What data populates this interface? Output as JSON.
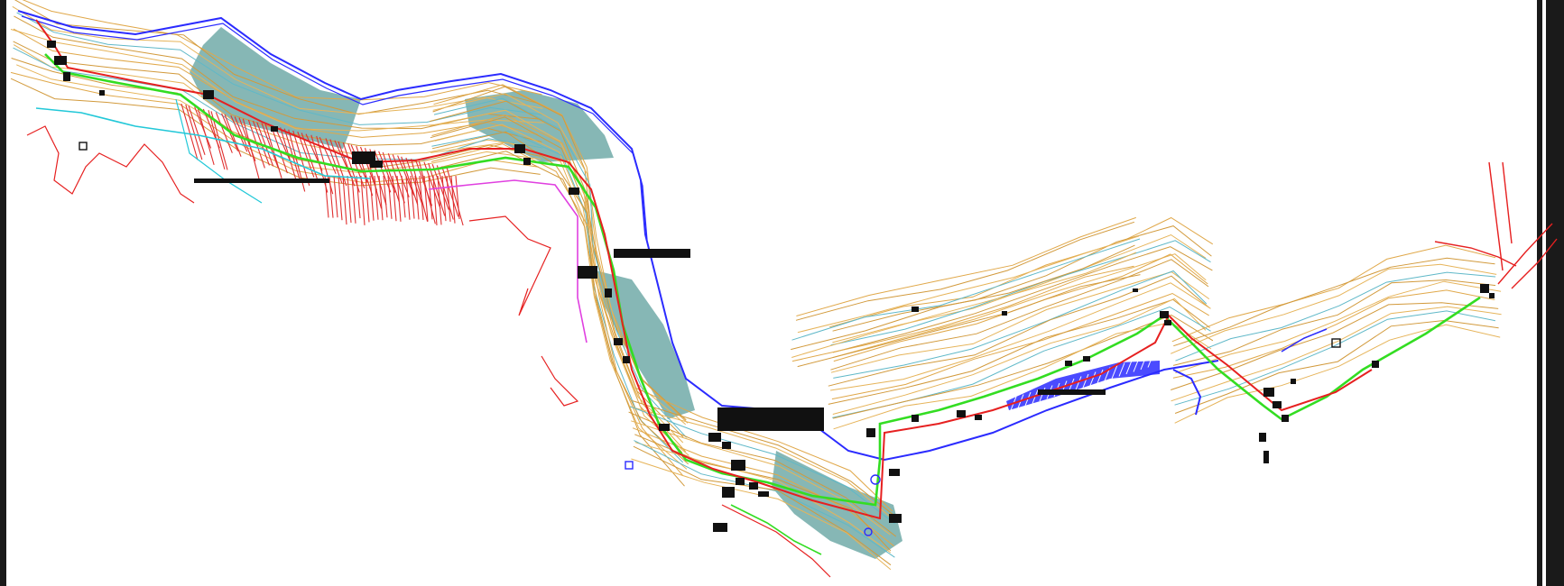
{
  "title": "",
  "colors": {
    "background": "#ffffff",
    "frame": "#1a1a1a",
    "contour_main": "#e0a84a",
    "contour_minor": "#d29a3c",
    "contour_alt": "#5fb8c8",
    "terrain_fill": "#7fb3b1",
    "terrain_fill_light": "#95c2bf",
    "boundary_blue": "#2b2bff",
    "route_red": "#e62020",
    "route_green": "#33dd22",
    "route_cyan": "#22c8d8",
    "route_magenta": "#e040e0",
    "building_black": "#111111",
    "section_red": "#e03030"
  },
  "legend": []
}
